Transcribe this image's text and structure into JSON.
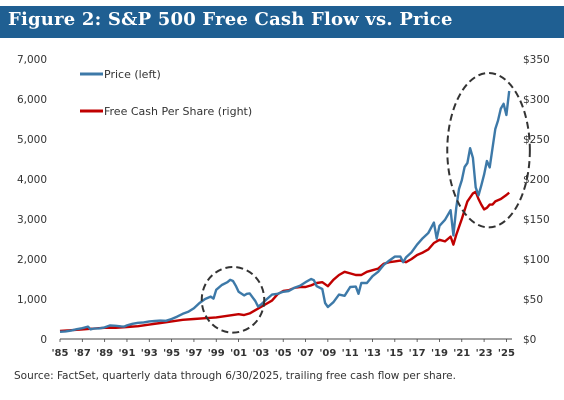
{
  "figure": {
    "title": "Figure 2:  S&P 500 Free Cash Flow vs. Price",
    "source": "Source: FactSet, quarterly data through 6/30/2025, trailing free cash flow per share."
  },
  "colors": {
    "title_bar": "#1f5f92",
    "price_line": "#3d79a8",
    "fcf_line": "#c00000",
    "highlight_circle": "#333333"
  },
  "chart_data": {
    "type": "line",
    "title": "",
    "xlabel": "",
    "ylabel_left": "",
    "ylabel_right": "",
    "xlim": [
      1985,
      2025.5
    ],
    "ylim_left": [
      0,
      7000
    ],
    "ylim_right": [
      0,
      350
    ],
    "left_ticks": [
      "7,000",
      "6,000",
      "5,000",
      "4,000",
      "3,000",
      "2,000",
      "1,000",
      "0"
    ],
    "right_ticks": [
      "$350",
      "$300",
      "$250",
      "$200",
      "$150",
      "$100",
      "$50",
      "$0"
    ],
    "x_ticks": [
      "'85",
      "'87",
      "'89",
      "'91",
      "'93",
      "'95",
      "'97",
      "'99",
      "'01",
      "'03",
      "'05",
      "'07",
      "'09",
      "'11",
      "'13",
      "'15",
      "'17",
      "'19",
      "'21",
      "'23",
      "'25"
    ],
    "grid": false,
    "legend_position": "top-left",
    "series": [
      {
        "name": "Price (left)",
        "axis": "left",
        "points": [
          [
            1985,
            180
          ],
          [
            1985.5,
            190
          ],
          [
            1986,
            210
          ],
          [
            1986.5,
            245
          ],
          [
            1987,
            270
          ],
          [
            1987.5,
            310
          ],
          [
            1987.75,
            240
          ],
          [
            1988,
            260
          ],
          [
            1988.5,
            265
          ],
          [
            1989,
            290
          ],
          [
            1989.5,
            340
          ],
          [
            1990,
            330
          ],
          [
            1990.5,
            315
          ],
          [
            1990.75,
            310
          ],
          [
            1991,
            340
          ],
          [
            1991.5,
            380
          ],
          [
            1992,
            405
          ],
          [
            1992.5,
            415
          ],
          [
            1993,
            440
          ],
          [
            1993.5,
            450
          ],
          [
            1994,
            460
          ],
          [
            1994.5,
            455
          ],
          [
            1995,
            500
          ],
          [
            1995.5,
            560
          ],
          [
            1996,
            630
          ],
          [
            1996.5,
            680
          ],
          [
            1997,
            770
          ],
          [
            1997.5,
            900
          ],
          [
            1998,
            1000
          ],
          [
            1998.5,
            1060
          ],
          [
            1998.75,
            1010
          ],
          [
            1999,
            1230
          ],
          [
            1999.5,
            1350
          ],
          [
            2000,
            1420
          ],
          [
            2000.25,
            1480
          ],
          [
            2000.5,
            1450
          ],
          [
            2000.75,
            1330
          ],
          [
            2001,
            1180
          ],
          [
            2001.5,
            1090
          ],
          [
            2001.75,
            1130
          ],
          [
            2002,
            1140
          ],
          [
            2002.5,
            950
          ],
          [
            2002.75,
            810
          ],
          [
            2003,
            860
          ],
          [
            2003.5,
            990
          ],
          [
            2004,
            1110
          ],
          [
            2004.5,
            1130
          ],
          [
            2005,
            1180
          ],
          [
            2005.5,
            1200
          ],
          [
            2006,
            1280
          ],
          [
            2006.5,
            1330
          ],
          [
            2007,
            1420
          ],
          [
            2007.5,
            1500
          ],
          [
            2007.75,
            1470
          ],
          [
            2008,
            1320
          ],
          [
            2008.5,
            1250
          ],
          [
            2008.75,
            900
          ],
          [
            2009,
            800
          ],
          [
            2009.5,
            920
          ],
          [
            2010,
            1110
          ],
          [
            2010.5,
            1080
          ],
          [
            2011,
            1300
          ],
          [
            2011.5,
            1310
          ],
          [
            2011.75,
            1130
          ],
          [
            2012,
            1400
          ],
          [
            2012.5,
            1400
          ],
          [
            2013,
            1570
          ],
          [
            2013.5,
            1680
          ],
          [
            2014,
            1850
          ],
          [
            2014.5,
            1960
          ],
          [
            2015,
            2060
          ],
          [
            2015.5,
            2060
          ],
          [
            2015.75,
            1920
          ],
          [
            2016,
            2040
          ],
          [
            2016.5,
            2170
          ],
          [
            2017,
            2360
          ],
          [
            2017.5,
            2520
          ],
          [
            2018,
            2650
          ],
          [
            2018.5,
            2910
          ],
          [
            2018.75,
            2510
          ],
          [
            2019,
            2830
          ],
          [
            2019.5,
            2980
          ],
          [
            2020,
            3220
          ],
          [
            2020.25,
            2590
          ],
          [
            2020.5,
            3270
          ],
          [
            2020.75,
            3750
          ],
          [
            2021,
            3970
          ],
          [
            2021.25,
            4300
          ],
          [
            2021.5,
            4400
          ],
          [
            2021.75,
            4770
          ],
          [
            2022,
            4530
          ],
          [
            2022.25,
            3790
          ],
          [
            2022.5,
            3590
          ],
          [
            2022.75,
            3840
          ],
          [
            2023,
            4110
          ],
          [
            2023.25,
            4450
          ],
          [
            2023.5,
            4290
          ],
          [
            2023.75,
            4770
          ],
          [
            2024,
            5250
          ],
          [
            2024.25,
            5460
          ],
          [
            2024.5,
            5760
          ],
          [
            2024.75,
            5880
          ],
          [
            2025,
            5600
          ],
          [
            2025.25,
            6200
          ]
        ]
      },
      {
        "name": "Free Cash Per Share (right)",
        "axis": "right",
        "points": [
          [
            1985,
            10
          ],
          [
            1986,
            11
          ],
          [
            1987,
            12
          ],
          [
            1988,
            13
          ],
          [
            1989,
            14
          ],
          [
            1990,
            14
          ],
          [
            1991,
            15
          ],
          [
            1992,
            16
          ],
          [
            1993,
            18
          ],
          [
            1994,
            20
          ],
          [
            1995,
            22
          ],
          [
            1996,
            24
          ],
          [
            1997,
            25
          ],
          [
            1998,
            26
          ],
          [
            1999,
            27
          ],
          [
            2000,
            29
          ],
          [
            2001,
            31
          ],
          [
            2001.5,
            30
          ],
          [
            2002,
            32
          ],
          [
            2002.5,
            36
          ],
          [
            2003,
            40
          ],
          [
            2004,
            48
          ],
          [
            2004.5,
            56
          ],
          [
            2005,
            60
          ],
          [
            2005.5,
            61
          ],
          [
            2006,
            64
          ],
          [
            2006.5,
            65
          ],
          [
            2007,
            65
          ],
          [
            2007.5,
            67
          ],
          [
            2008,
            70
          ],
          [
            2008.5,
            71
          ],
          [
            2009,
            66
          ],
          [
            2009.5,
            74
          ],
          [
            2010,
            80
          ],
          [
            2010.5,
            84
          ],
          [
            2011,
            82
          ],
          [
            2011.5,
            80
          ],
          [
            2012,
            80
          ],
          [
            2012.5,
            84
          ],
          [
            2013,
            86
          ],
          [
            2013.5,
            88
          ],
          [
            2014,
            94
          ],
          [
            2014.5,
            96
          ],
          [
            2015,
            97
          ],
          [
            2015.5,
            98
          ],
          [
            2016,
            96
          ],
          [
            2016.5,
            100
          ],
          [
            2017,
            105
          ],
          [
            2017.5,
            108
          ],
          [
            2018,
            112
          ],
          [
            2018.5,
            120
          ],
          [
            2019,
            124
          ],
          [
            2019.5,
            122
          ],
          [
            2020,
            128
          ],
          [
            2020.25,
            118
          ],
          [
            2020.5,
            130
          ],
          [
            2021,
            150
          ],
          [
            2021.5,
            172
          ],
          [
            2022,
            182
          ],
          [
            2022.25,
            184
          ],
          [
            2022.5,
            175
          ],
          [
            2022.75,
            168
          ],
          [
            2023,
            162
          ],
          [
            2023.25,
            164
          ],
          [
            2023.5,
            168
          ],
          [
            2023.75,
            168
          ],
          [
            2024,
            172
          ],
          [
            2024.5,
            175
          ],
          [
            2025,
            180
          ],
          [
            2025.25,
            183
          ]
        ]
      }
    ],
    "annotations": [
      {
        "type": "dashed-ellipse",
        "label": "",
        "center_year": 2000.5,
        "center_left_value": 980,
        "half_width_years": 2.8,
        "half_height_left_value": 820
      },
      {
        "type": "dashed-ellipse",
        "label": "",
        "center_year": 2023.4,
        "center_left_value": 4720,
        "half_width_years": 3.7,
        "half_height_left_value": 1930
      }
    ]
  }
}
